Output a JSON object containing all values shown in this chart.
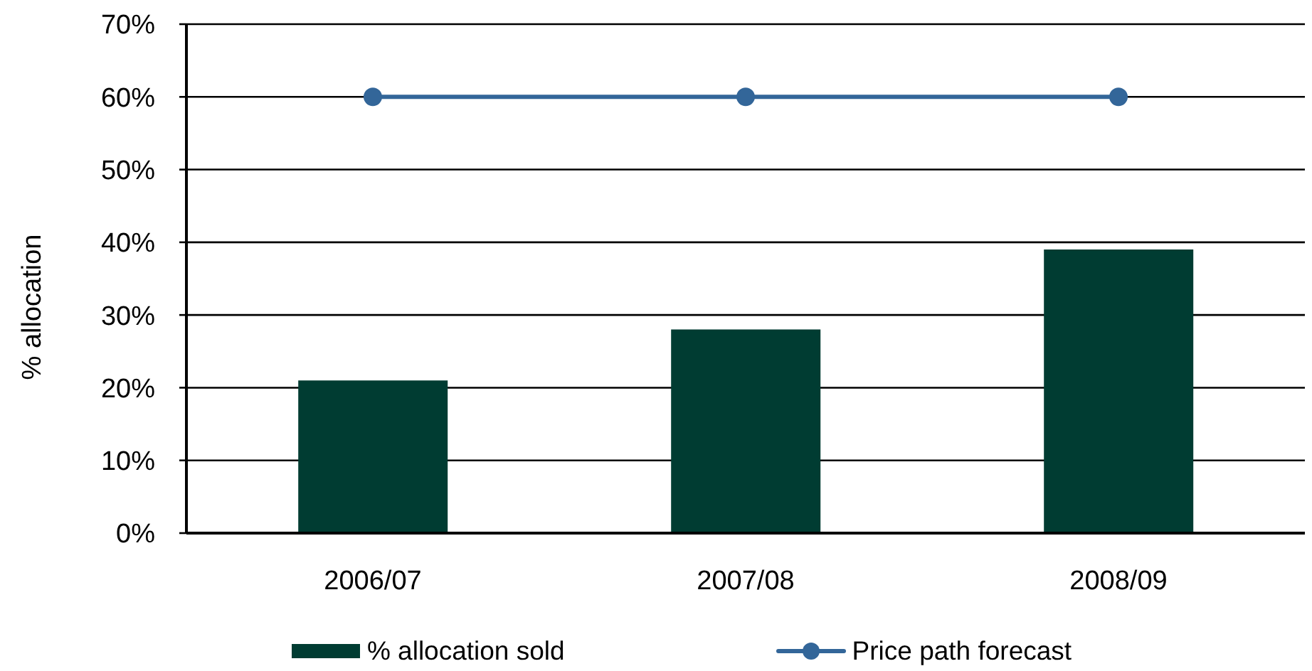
{
  "chart_data": {
    "type": "bar",
    "ylabel": "% allocation",
    "categories": [
      "2006/07",
      "2007/08",
      "2008/09"
    ],
    "series": [
      {
        "name": "% allocation sold",
        "color": "#003c32",
        "values": [
          21,
          28,
          39
        ]
      },
      {
        "name": "Price path forecast",
        "type": "line",
        "color": "#336699",
        "values": [
          60,
          60,
          60
        ]
      }
    ],
    "ylim": [
      0,
      70
    ],
    "yticks": [
      {
        "value": 0,
        "label": "0%"
      },
      {
        "value": 10,
        "label": "10%"
      },
      {
        "value": 20,
        "label": "20%"
      },
      {
        "value": 30,
        "label": "30%"
      },
      {
        "value": 40,
        "label": "40%"
      },
      {
        "value": 50,
        "label": "50%"
      },
      {
        "value": 60,
        "label": "60%"
      },
      {
        "value": 70,
        "label": "70%"
      }
    ],
    "grid": "y",
    "legend": "bottom",
    "marker": "circle",
    "line_style": "solid"
  }
}
